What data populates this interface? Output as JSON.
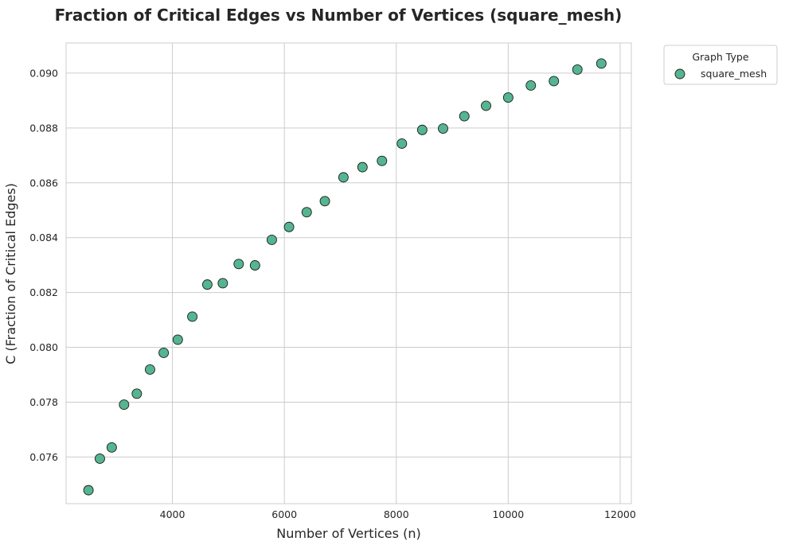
{
  "chart_data": {
    "type": "scatter",
    "title": "Fraction of Critical Edges vs Number of Vertices (square_mesh)",
    "xlabel": "Number of Vertices (n)",
    "ylabel": "C (Fraction of Critical Edges)",
    "xlim": [
      2100,
      12200
    ],
    "ylim": [
      0.0743,
      0.0911
    ],
    "xticks": [
      4000,
      6000,
      8000,
      10000,
      12000
    ],
    "xtick_labels": [
      "4000",
      "6000",
      "8000",
      "10000",
      "12000"
    ],
    "yticks": [
      0.076,
      0.078,
      0.08,
      0.082,
      0.084,
      0.086,
      0.088,
      0.09
    ],
    "ytick_labels": [
      "0.076",
      "0.078",
      "0.080",
      "0.082",
      "0.084",
      "0.086",
      "0.088",
      "0.090"
    ],
    "grid": true,
    "legend": {
      "title": "Graph Type",
      "placement": "outside-top-right"
    },
    "series": [
      {
        "name": "square_mesh",
        "color": "#55b591",
        "edgecolor": "#1a1a1a",
        "points": [
          {
            "x": 2500,
            "y": 0.07479
          },
          {
            "x": 2704,
            "y": 0.07594
          },
          {
            "x": 2916,
            "y": 0.07635
          },
          {
            "x": 3136,
            "y": 0.07791
          },
          {
            "x": 3364,
            "y": 0.07831
          },
          {
            "x": 3600,
            "y": 0.07919
          },
          {
            "x": 3844,
            "y": 0.0798
          },
          {
            "x": 4096,
            "y": 0.08028
          },
          {
            "x": 4356,
            "y": 0.08112
          },
          {
            "x": 4624,
            "y": 0.08229
          },
          {
            "x": 4900,
            "y": 0.08234
          },
          {
            "x": 5184,
            "y": 0.08304
          },
          {
            "x": 5476,
            "y": 0.08299
          },
          {
            "x": 5776,
            "y": 0.08392
          },
          {
            "x": 6084,
            "y": 0.08439
          },
          {
            "x": 6400,
            "y": 0.08493
          },
          {
            "x": 6724,
            "y": 0.08533
          },
          {
            "x": 7056,
            "y": 0.0862
          },
          {
            "x": 7396,
            "y": 0.08657
          },
          {
            "x": 7744,
            "y": 0.0868
          },
          {
            "x": 8100,
            "y": 0.08743
          },
          {
            "x": 8464,
            "y": 0.08793
          },
          {
            "x": 8836,
            "y": 0.08798
          },
          {
            "x": 9216,
            "y": 0.08843
          },
          {
            "x": 9604,
            "y": 0.08881
          },
          {
            "x": 10000,
            "y": 0.08911
          },
          {
            "x": 10404,
            "y": 0.08955
          },
          {
            "x": 10816,
            "y": 0.08971
          },
          {
            "x": 11236,
            "y": 0.09013
          },
          {
            "x": 11664,
            "y": 0.09035
          }
        ]
      }
    ]
  }
}
